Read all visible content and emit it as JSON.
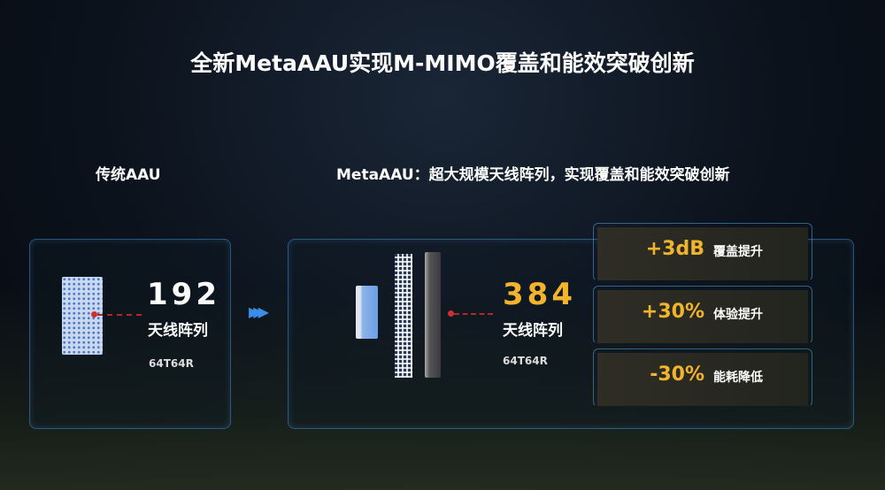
{
  "title": "全新MetaAAU实现M-MIMO覆盖和能效突破创新",
  "left": {
    "heading": "传统AAU",
    "count": "192",
    "count_label": "天线阵列",
    "config": "64T64R"
  },
  "right": {
    "heading": "MetaAAU：超大规模天线阵列，实现覆盖和能效突破创新",
    "count": "384",
    "count_label": "天线阵列",
    "config": "64T64R",
    "metrics": [
      {
        "value": "+3dB",
        "label": "覆盖提升"
      },
      {
        "value": "+30%",
        "label": "体验提升"
      },
      {
        "value": "-30%",
        "label": "能耗降低"
      }
    ]
  },
  "colors": {
    "accent_gold": "#f2b42c",
    "border_blue": "#4a8cc8",
    "marker_red": "#d0302e"
  }
}
